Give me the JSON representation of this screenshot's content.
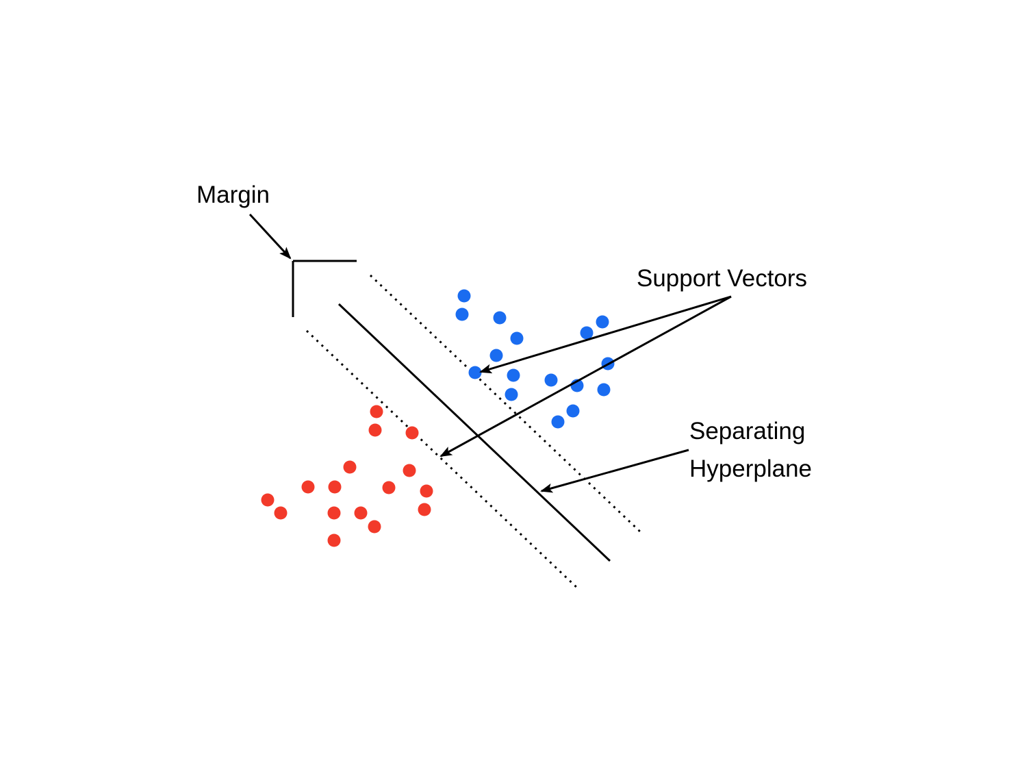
{
  "labels": {
    "margin": "Margin",
    "support_vectors": "Support Vectors",
    "separating_line1": "Separating",
    "separating_line2": "Hyperplane"
  },
  "colors": {
    "class_a": "#1a6cf0",
    "class_b": "#f23a2a",
    "lines": "#000000",
    "background": "#ffffff"
  },
  "point_classes": {
    "class_a_count": 17,
    "class_b_count": 17
  }
}
